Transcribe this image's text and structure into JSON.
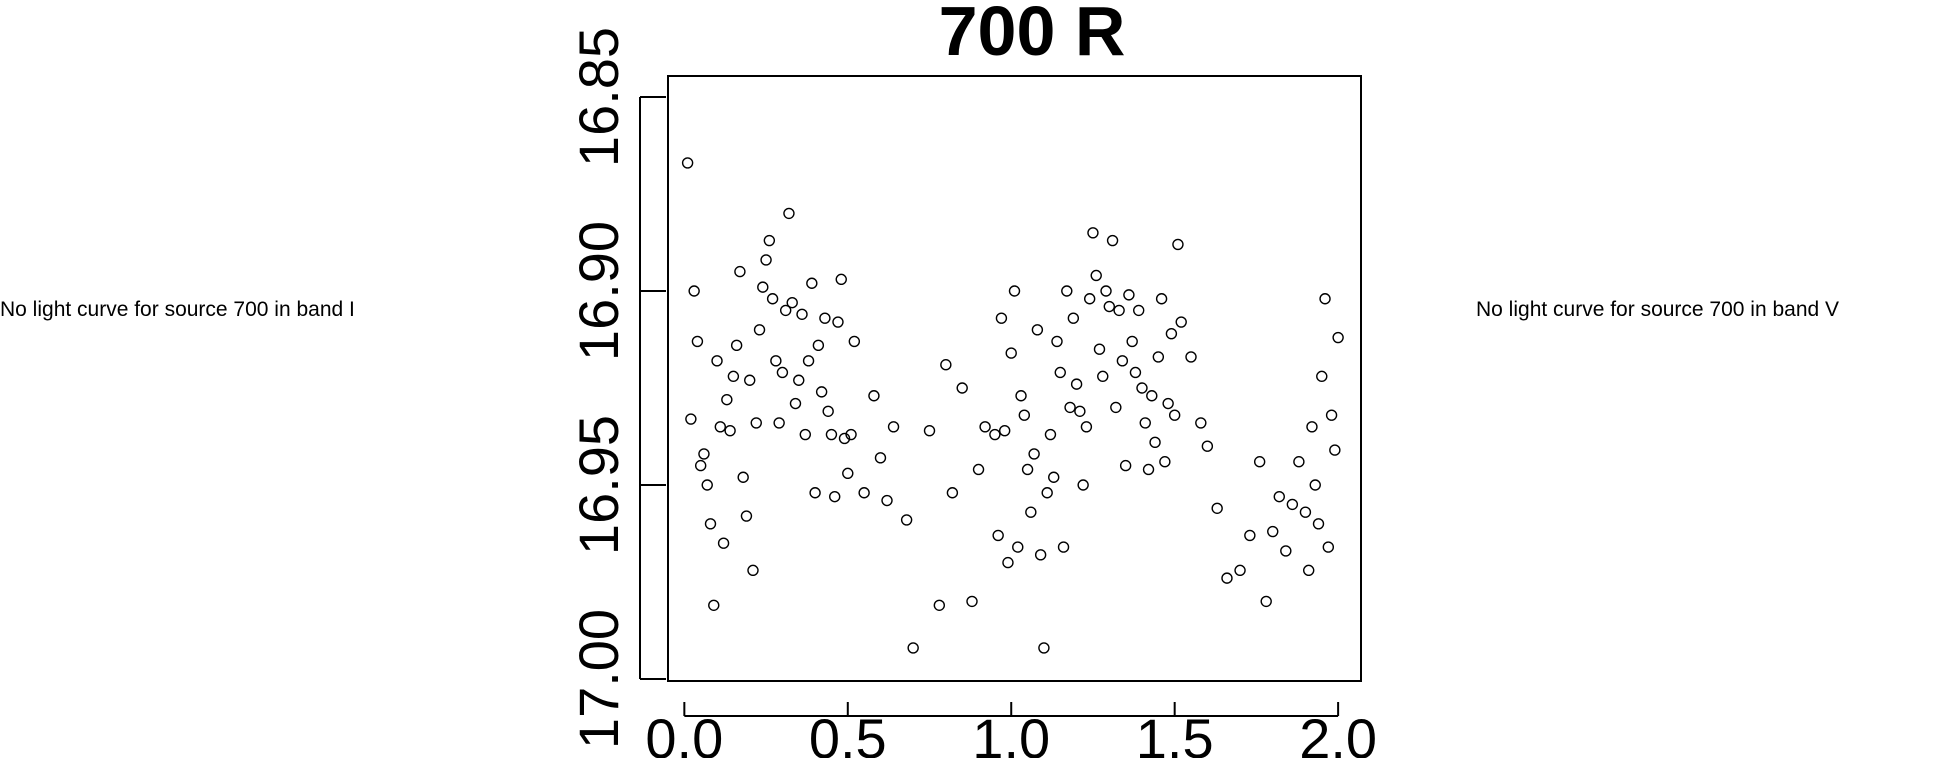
{
  "left_message": "No light curve for source 700 in band I",
  "right_message": "No light curve for source 700 in band V",
  "chart_data": {
    "type": "scatter",
    "title": "700 R",
    "xlabel": "",
    "ylabel": "",
    "xlim": [
      -0.05,
      2.07
    ],
    "ylim": [
      17.0,
      16.85
    ],
    "y_reversed": true,
    "xticks": [
      {
        "value": 0.0,
        "label": "0.0"
      },
      {
        "value": 0.5,
        "label": "0.5"
      },
      {
        "value": 1.0,
        "label": "1.0"
      },
      {
        "value": 1.5,
        "label": "1.5"
      },
      {
        "value": 2.0,
        "label": "2.0"
      }
    ],
    "yticks": [
      {
        "value": 16.85,
        "label": "16.85"
      },
      {
        "value": 16.9,
        "label": "16.90"
      },
      {
        "value": 16.95,
        "label": "16.95"
      },
      {
        "value": 17.0,
        "label": "17.00"
      }
    ],
    "grid": false,
    "marker": "open-circle",
    "points": [
      [
        0.01,
        16.867
      ],
      [
        0.02,
        16.933
      ],
      [
        0.03,
        16.9
      ],
      [
        0.04,
        16.913
      ],
      [
        0.05,
        16.945
      ],
      [
        0.06,
        16.942
      ],
      [
        0.07,
        16.95
      ],
      [
        0.08,
        16.96
      ],
      [
        0.09,
        16.981
      ],
      [
        0.1,
        16.918
      ],
      [
        0.11,
        16.935
      ],
      [
        0.12,
        16.965
      ],
      [
        0.13,
        16.928
      ],
      [
        0.14,
        16.936
      ],
      [
        0.15,
        16.922
      ],
      [
        0.16,
        16.914
      ],
      [
        0.17,
        16.895
      ],
      [
        0.18,
        16.948
      ],
      [
        0.19,
        16.958
      ],
      [
        0.2,
        16.923
      ],
      [
        0.21,
        16.972
      ],
      [
        0.22,
        16.934
      ],
      [
        0.23,
        16.91
      ],
      [
        0.24,
        16.899
      ],
      [
        0.25,
        16.892
      ],
      [
        0.26,
        16.887
      ],
      [
        0.27,
        16.902
      ],
      [
        0.28,
        16.918
      ],
      [
        0.29,
        16.934
      ],
      [
        0.3,
        16.921
      ],
      [
        0.31,
        16.905
      ],
      [
        0.32,
        16.88
      ],
      [
        0.33,
        16.903
      ],
      [
        0.34,
        16.929
      ],
      [
        0.35,
        16.923
      ],
      [
        0.36,
        16.906
      ],
      [
        0.37,
        16.937
      ],
      [
        0.38,
        16.918
      ],
      [
        0.39,
        16.898
      ],
      [
        0.4,
        16.952
      ],
      [
        0.41,
        16.914
      ],
      [
        0.42,
        16.926
      ],
      [
        0.43,
        16.907
      ],
      [
        0.44,
        16.931
      ],
      [
        0.45,
        16.937
      ],
      [
        0.46,
        16.953
      ],
      [
        0.47,
        16.908
      ],
      [
        0.48,
        16.897
      ],
      [
        0.49,
        16.938
      ],
      [
        0.5,
        16.947
      ],
      [
        0.51,
        16.937
      ],
      [
        0.52,
        16.913
      ],
      [
        0.55,
        16.952
      ],
      [
        0.58,
        16.927
      ],
      [
        0.6,
        16.943
      ],
      [
        0.62,
        16.954
      ],
      [
        0.64,
        16.935
      ],
      [
        0.68,
        16.959
      ],
      [
        0.7,
        16.992
      ],
      [
        0.75,
        16.936
      ],
      [
        0.78,
        16.981
      ],
      [
        0.8,
        16.919
      ],
      [
        0.82,
        16.952
      ],
      [
        0.85,
        16.925
      ],
      [
        0.88,
        16.98
      ],
      [
        0.9,
        16.946
      ],
      [
        0.92,
        16.935
      ],
      [
        0.95,
        16.937
      ],
      [
        0.96,
        16.963
      ],
      [
        0.97,
        16.907
      ],
      [
        0.98,
        16.936
      ],
      [
        0.99,
        16.97
      ],
      [
        1.0,
        16.916
      ],
      [
        1.01,
        16.9
      ],
      [
        1.02,
        16.966
      ],
      [
        1.03,
        16.927
      ],
      [
        1.04,
        16.932
      ],
      [
        1.05,
        16.946
      ],
      [
        1.06,
        16.957
      ],
      [
        1.07,
        16.942
      ],
      [
        1.08,
        16.91
      ],
      [
        1.09,
        16.968
      ],
      [
        1.1,
        16.992
      ],
      [
        1.11,
        16.952
      ],
      [
        1.12,
        16.937
      ],
      [
        1.13,
        16.948
      ],
      [
        1.14,
        16.913
      ],
      [
        1.15,
        16.921
      ],
      [
        1.16,
        16.966
      ],
      [
        1.17,
        16.9
      ],
      [
        1.18,
        16.93
      ],
      [
        1.19,
        16.907
      ],
      [
        1.2,
        16.924
      ],
      [
        1.21,
        16.931
      ],
      [
        1.22,
        16.95
      ],
      [
        1.23,
        16.935
      ],
      [
        1.24,
        16.902
      ],
      [
        1.25,
        16.885
      ],
      [
        1.26,
        16.896
      ],
      [
        1.27,
        16.915
      ],
      [
        1.28,
        16.922
      ],
      [
        1.29,
        16.9
      ],
      [
        1.3,
        16.904
      ],
      [
        1.31,
        16.887
      ],
      [
        1.32,
        16.93
      ],
      [
        1.33,
        16.905
      ],
      [
        1.34,
        16.918
      ],
      [
        1.35,
        16.945
      ],
      [
        1.36,
        16.901
      ],
      [
        1.37,
        16.913
      ],
      [
        1.38,
        16.921
      ],
      [
        1.39,
        16.905
      ],
      [
        1.4,
        16.925
      ],
      [
        1.41,
        16.934
      ],
      [
        1.42,
        16.946
      ],
      [
        1.43,
        16.927
      ],
      [
        1.44,
        16.939
      ],
      [
        1.45,
        16.917
      ],
      [
        1.46,
        16.902
      ],
      [
        1.47,
        16.944
      ],
      [
        1.48,
        16.929
      ],
      [
        1.49,
        16.911
      ],
      [
        1.5,
        16.932
      ],
      [
        1.51,
        16.888
      ],
      [
        1.52,
        16.908
      ],
      [
        1.55,
        16.917
      ],
      [
        1.58,
        16.934
      ],
      [
        1.6,
        16.94
      ],
      [
        1.63,
        16.956
      ],
      [
        1.66,
        16.974
      ],
      [
        1.7,
        16.972
      ],
      [
        1.73,
        16.963
      ],
      [
        1.76,
        16.944
      ],
      [
        1.78,
        16.98
      ],
      [
        1.8,
        16.962
      ],
      [
        1.82,
        16.953
      ],
      [
        1.84,
        16.967
      ],
      [
        1.86,
        16.955
      ],
      [
        1.88,
        16.944
      ],
      [
        1.9,
        16.957
      ],
      [
        1.91,
        16.972
      ],
      [
        1.92,
        16.935
      ],
      [
        1.93,
        16.95
      ],
      [
        1.94,
        16.96
      ],
      [
        1.95,
        16.922
      ],
      [
        1.96,
        16.902
      ],
      [
        1.97,
        16.966
      ],
      [
        1.98,
        16.932
      ],
      [
        1.99,
        16.941
      ],
      [
        2.0,
        16.912
      ]
    ]
  }
}
